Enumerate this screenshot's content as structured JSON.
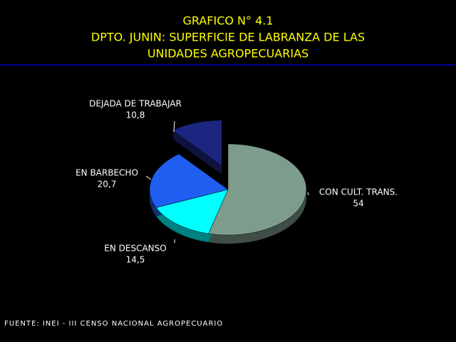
{
  "chart_data": {
    "type": "pie",
    "title": [
      "GRAFICO N° 4.1",
      "DPTO. JUNIN: SUPERFICIE DE LABRANZA DE LAS",
      "UNIDADES AGROPECUARIAS"
    ],
    "categories": [
      "CON CULT. TRANS.",
      "EN DESCANSO",
      "EN BARBECHO",
      "DEJADA DE TRABAJAR"
    ],
    "values": [
      54,
      14.5,
      20.7,
      10.8
    ],
    "value_labels": [
      "54",
      "14,5",
      "20,7",
      "10,8"
    ],
    "colors": [
      "#7d9c8c",
      "#00ffff",
      "#1f5ef0",
      "#1c2680"
    ],
    "exploded": [
      false,
      false,
      false,
      true
    ],
    "source": "FUENTE: INEI - III CENSO NACIONAL AGROPECUARIO"
  }
}
